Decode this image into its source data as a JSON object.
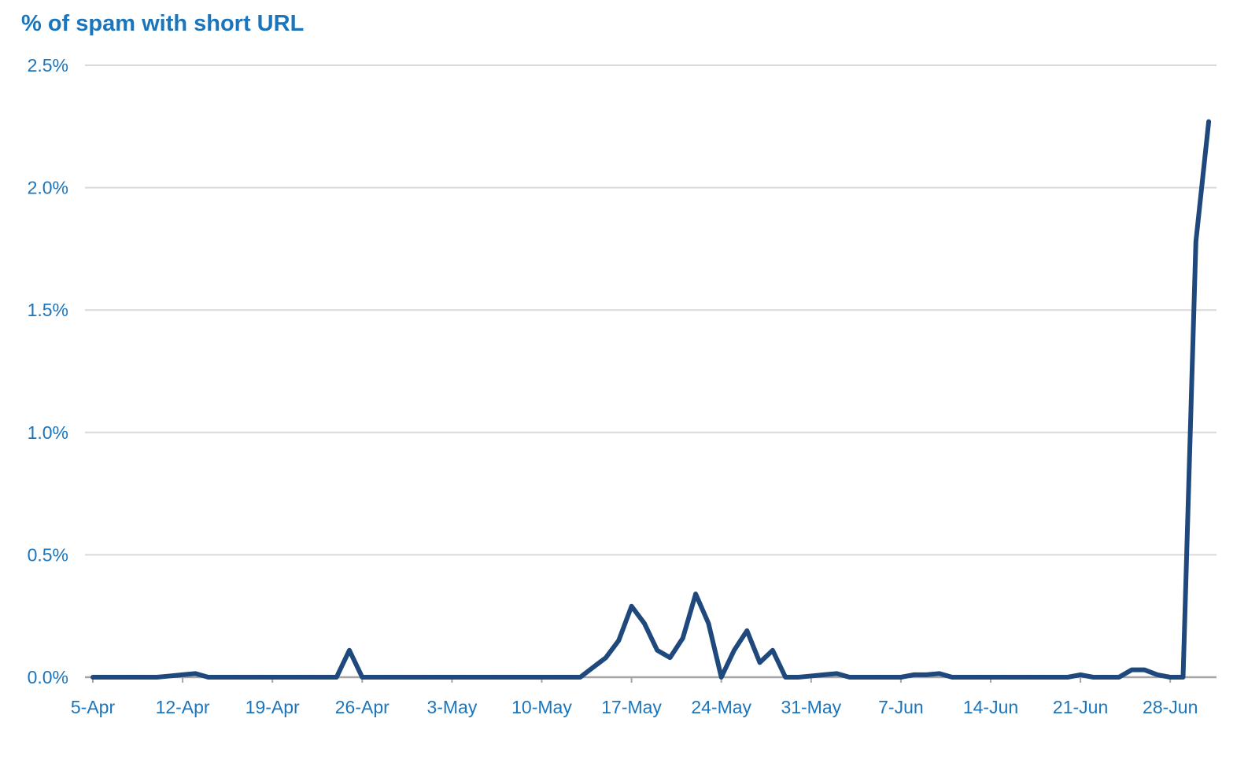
{
  "colors": {
    "title": "#1b75bc",
    "tick_labels": "#1b75bc",
    "line": "#1f497d",
    "grid": "#d9d9d9",
    "axis": "#a6a6a6"
  },
  "chart_data": {
    "type": "line",
    "title": "% of spam with short URL",
    "xlabel": "",
    "ylabel": "",
    "grid": true,
    "legend": "none",
    "ylim": [
      0,
      2.5
    ],
    "y_ticks": [
      "0.0%",
      "0.5%",
      "1.0%",
      "1.5%",
      "2.0%",
      "2.5%"
    ],
    "x_ticks": [
      {
        "day": 0,
        "label": "5-Apr"
      },
      {
        "day": 7,
        "label": "12-Apr"
      },
      {
        "day": 14,
        "label": "19-Apr"
      },
      {
        "day": 21,
        "label": "26-Apr"
      },
      {
        "day": 28,
        "label": "3-May"
      },
      {
        "day": 35,
        "label": "10-May"
      },
      {
        "day": 42,
        "label": "17-May"
      },
      {
        "day": 49,
        "label": "24-May"
      },
      {
        "day": 56,
        "label": "31-May"
      },
      {
        "day": 63,
        "label": "7-Jun"
      },
      {
        "day": 70,
        "label": "14-Jun"
      },
      {
        "day": 77,
        "label": "21-Jun"
      },
      {
        "day": 84,
        "label": "28-Jun"
      }
    ],
    "series": [
      {
        "name": "",
        "x": [
          0,
          1,
          2,
          3,
          4,
          5,
          6,
          7,
          8,
          9,
          10,
          11,
          12,
          13,
          14,
          15,
          16,
          17,
          18,
          19,
          20,
          21,
          22,
          23,
          24,
          25,
          26,
          27,
          28,
          29,
          30,
          31,
          32,
          33,
          34,
          35,
          36,
          37,
          38,
          39,
          40,
          41,
          42,
          43,
          44,
          45,
          46,
          47,
          48,
          49,
          50,
          51,
          52,
          53,
          54,
          55,
          56,
          57,
          58,
          59,
          60,
          61,
          62,
          63,
          64,
          65,
          66,
          67,
          68,
          69,
          70,
          71,
          72,
          73,
          74,
          75,
          76,
          77,
          78,
          79,
          80,
          81,
          82,
          83,
          84,
          85,
          86,
          87
        ],
        "values": [
          0,
          0,
          0,
          0,
          0,
          0,
          0.005,
          0.01,
          0.015,
          0,
          0,
          0,
          0,
          0,
          0,
          0,
          0,
          0,
          0,
          0,
          0.11,
          0,
          0,
          0,
          0,
          0,
          0,
          0,
          0,
          0,
          0,
          0,
          0,
          0,
          0,
          0,
          0,
          0,
          0,
          0.04,
          0.08,
          0.15,
          0.29,
          0.22,
          0.11,
          0.08,
          0.16,
          0.34,
          0.22,
          0,
          0.11,
          0.19,
          0.06,
          0.11,
          0,
          0,
          0.005,
          0.01,
          0.015,
          0,
          0,
          0,
          0,
          0,
          0.01,
          0.01,
          0.015,
          0,
          0,
          0,
          0,
          0,
          0,
          0,
          0,
          0,
          0,
          0.01,
          0,
          0,
          0,
          0.03,
          0.03,
          0.01,
          0,
          0,
          1.78,
          2.27
        ]
      }
    ]
  }
}
